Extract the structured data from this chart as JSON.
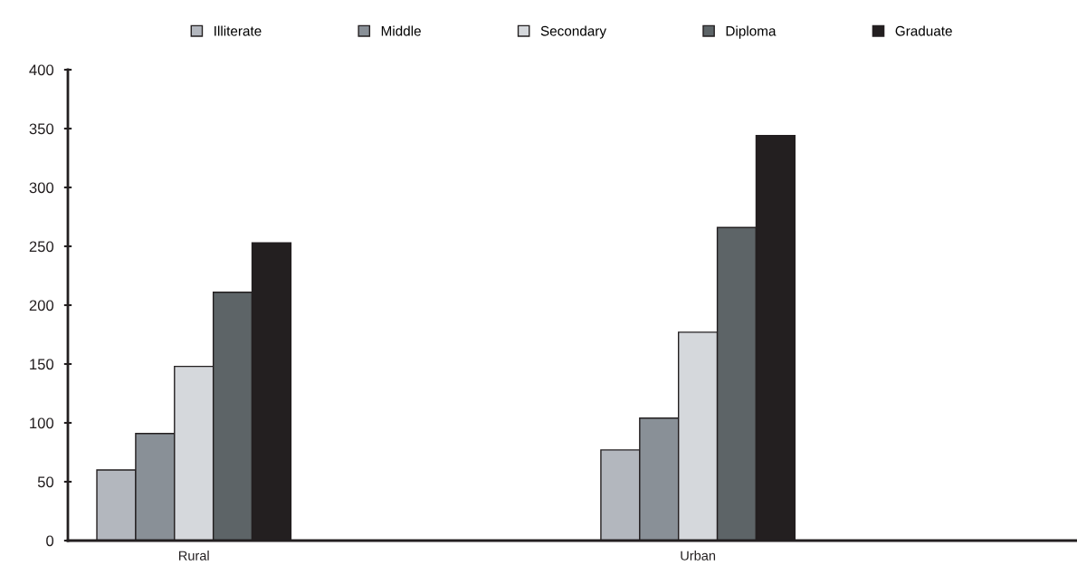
{
  "chart_data": {
    "type": "bar",
    "categories": [
      "Rural",
      "Urban"
    ],
    "series": [
      {
        "name": "Illiterate",
        "color": "#b3b7be",
        "values": [
          60,
          77
        ]
      },
      {
        "name": "Middle",
        "color": "#899097",
        "values": [
          91,
          104
        ]
      },
      {
        "name": "Secondary",
        "color": "#d5d8dc",
        "values": [
          148,
          177
        ]
      },
      {
        "name": "Diploma",
        "color": "#5d6467",
        "values": [
          211,
          266
        ]
      },
      {
        "name": "Graduate",
        "color": "#231f20",
        "values": [
          253,
          344
        ]
      }
    ],
    "ylim": [
      0,
      400
    ],
    "yticks": [
      0,
      50,
      100,
      150,
      200,
      250,
      300,
      350,
      400
    ],
    "grid": false,
    "legend": "top"
  }
}
